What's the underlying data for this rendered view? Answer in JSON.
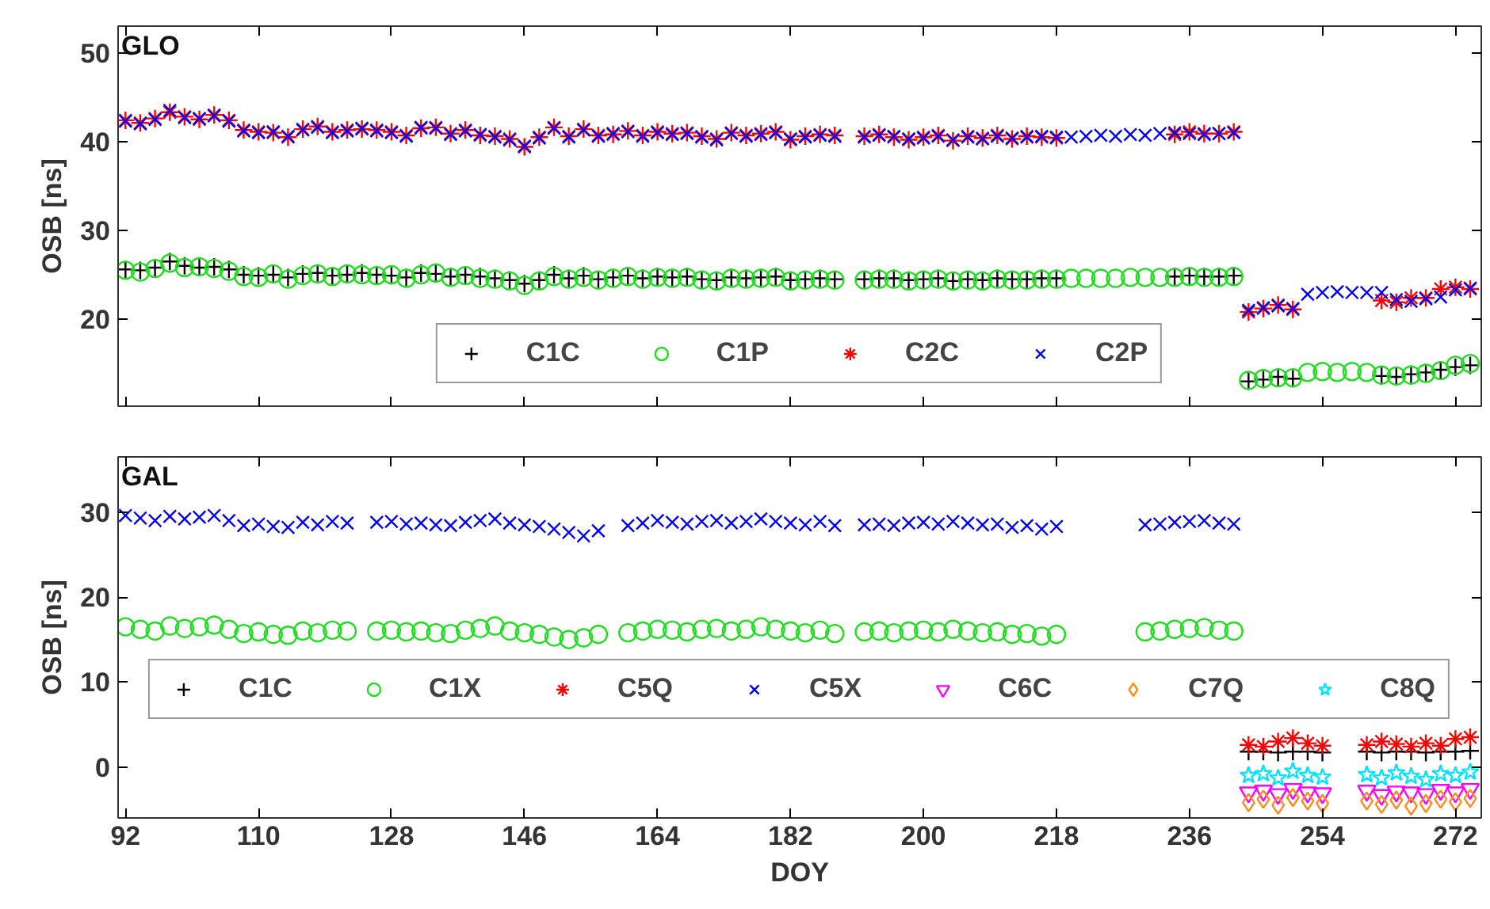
{
  "chart_data": [
    {
      "type": "scatter",
      "title": "GLO",
      "ylabel": "OSB [ns]",
      "tick_labels": "y",
      "legend": "bottom",
      "x": [
        92,
        94,
        96,
        98,
        100,
        102,
        104,
        106,
        108,
        110,
        112,
        114,
        116,
        118,
        120,
        122,
        124,
        126,
        128,
        130,
        132,
        134,
        136,
        138,
        140,
        142,
        144,
        146,
        148,
        150,
        152,
        154,
        156,
        158,
        160,
        162,
        164,
        166,
        168,
        170,
        172,
        174,
        176,
        178,
        180,
        182,
        184,
        186,
        188,
        190,
        192,
        194,
        196,
        198,
        200,
        202,
        204,
        206,
        208,
        210,
        212,
        214,
        216,
        218,
        220,
        222,
        224,
        226,
        228,
        230,
        232,
        234,
        236,
        238,
        240,
        242,
        244,
        246,
        248,
        250,
        252,
        254,
        256,
        258,
        260,
        262,
        264,
        266,
        268,
        270,
        272,
        274
      ],
      "xlim": [
        91,
        275.5
      ],
      "xticks": [
        92,
        110,
        128,
        146,
        164,
        182,
        200,
        218,
        236,
        254,
        272
      ],
      "ylim": [
        10.2,
        53
      ],
      "yticks": [
        20,
        30,
        40,
        50
      ],
      "series": [
        {
          "name": "C1C",
          "color": "#000000",
          "marker": "cross",
          "values": [
            25.6,
            25.5,
            25.8,
            26.5,
            26.0,
            25.8,
            25.9,
            25.6,
            25.0,
            24.9,
            25.0,
            24.7,
            25.1,
            25.2,
            24.9,
            25.0,
            25.2,
            25.0,
            24.9,
            24.7,
            25.2,
            25.1,
            24.8,
            25.0,
            24.8,
            24.6,
            24.4,
            24.0,
            24.4,
            25.0,
            24.6,
            24.9,
            24.5,
            24.7,
            24.9,
            24.6,
            24.8,
            24.7,
            24.8,
            24.5,
            24.4,
            24.7,
            24.6,
            24.7,
            24.8,
            24.4,
            24.5,
            24.6,
            24.5,
            null,
            24.5,
            24.6,
            24.6,
            24.4,
            24.5,
            24.6,
            24.3,
            24.5,
            24.4,
            24.6,
            24.5,
            24.5,
            24.6,
            24.6,
            null,
            null,
            null,
            null,
            null,
            null,
            null,
            24.8,
            24.9,
            24.8,
            24.8,
            24.9,
            13.0,
            13.2,
            13.5,
            13.3,
            null,
            null,
            null,
            null,
            null,
            13.6,
            13.5,
            13.8,
            14.0,
            14.3,
            14.6,
            14.8
          ]
        },
        {
          "name": "C1P",
          "color": "#22dd22",
          "marker": "circle",
          "values": [
            25.5,
            25.3,
            25.7,
            26.3,
            25.8,
            25.9,
            25.7,
            25.4,
            24.8,
            24.7,
            25.1,
            24.5,
            24.9,
            25.1,
            24.8,
            25.1,
            25.0,
            24.9,
            25.0,
            24.6,
            25.0,
            25.2,
            24.7,
            24.9,
            24.6,
            24.5,
            24.3,
            23.8,
            24.3,
            24.8,
            24.5,
            24.7,
            24.4,
            24.6,
            24.8,
            24.5,
            24.7,
            24.6,
            24.7,
            24.4,
            24.3,
            24.6,
            24.5,
            24.6,
            24.7,
            24.3,
            24.4,
            24.5,
            24.4,
            null,
            24.4,
            24.5,
            24.5,
            24.3,
            24.4,
            24.5,
            24.3,
            24.4,
            24.3,
            24.5,
            24.4,
            24.4,
            24.5,
            24.5,
            24.6,
            24.6,
            24.6,
            24.6,
            24.7,
            24.7,
            24.7,
            24.7,
            24.8,
            24.7,
            24.7,
            24.8,
            13.1,
            13.3,
            13.4,
            13.4,
            14.0,
            14.1,
            14.0,
            14.1,
            14.0,
            13.7,
            13.6,
            13.7,
            13.9,
            14.2,
            14.8,
            15.0
          ]
        },
        {
          "name": "C2C",
          "color": "#ff0000",
          "values": [
            42.4,
            42.1,
            42.6,
            43.3,
            42.8,
            42.5,
            43.0,
            42.4,
            41.3,
            41.1,
            41.0,
            40.5,
            41.4,
            41.7,
            41.1,
            41.3,
            41.4,
            41.3,
            41.1,
            40.7,
            41.5,
            41.6,
            40.9,
            41.3,
            40.7,
            40.6,
            40.3,
            39.4,
            40.5,
            41.6,
            40.6,
            41.4,
            40.7,
            40.8,
            41.2,
            40.7,
            41.1,
            40.9,
            41.0,
            40.6,
            40.3,
            41.0,
            40.7,
            40.9,
            41.1,
            40.2,
            40.6,
            40.8,
            40.7,
            null,
            40.6,
            40.8,
            40.5,
            40.2,
            40.5,
            40.7,
            40.1,
            40.6,
            40.4,
            40.7,
            40.3,
            40.6,
            40.5,
            40.4,
            null,
            null,
            null,
            null,
            null,
            null,
            null,
            40.8,
            41.1,
            40.9,
            40.9,
            41.1,
            20.8,
            21.2,
            21.6,
            21.1,
            null,
            null,
            null,
            null,
            null,
            22.1,
            21.9,
            22.4,
            22.4,
            23.4,
            23.6,
            23.4
          ]
        },
        {
          "name": "C2P",
          "color": "#0000ff",
          "values": [
            42.3,
            42.0,
            42.5,
            43.5,
            42.7,
            42.6,
            42.9,
            42.3,
            41.2,
            41.0,
            41.1,
            40.6,
            41.3,
            41.6,
            41.0,
            41.2,
            41.5,
            41.2,
            41.0,
            40.6,
            41.6,
            41.5,
            40.8,
            41.2,
            40.8,
            40.5,
            40.2,
            39.5,
            40.4,
            41.5,
            40.5,
            41.3,
            40.6,
            40.9,
            41.1,
            40.6,
            41.0,
            40.8,
            40.9,
            40.5,
            40.2,
            40.9,
            40.6,
            40.8,
            41.0,
            40.3,
            40.5,
            40.7,
            40.6,
            null,
            40.5,
            40.7,
            40.6,
            40.3,
            40.4,
            40.6,
            40.2,
            40.5,
            40.3,
            40.6,
            40.4,
            40.5,
            40.6,
            40.5,
            40.5,
            40.6,
            40.7,
            40.6,
            40.8,
            40.7,
            40.9,
            41.0,
            40.9,
            40.8,
            40.9,
            41.0,
            21.0,
            21.3,
            21.5,
            21.2,
            22.8,
            23.0,
            23.1,
            23.0,
            23.0,
            23.0,
            22.2,
            22.0,
            22.3,
            22.5,
            23.3,
            23.5
          ]
        }
      ]
    },
    {
      "type": "scatter",
      "title": "GAL",
      "xlabel": "DOY",
      "ylabel": "OSB [ns]",
      "legend": "center",
      "x": [
        92,
        94,
        96,
        98,
        100,
        102,
        104,
        106,
        108,
        110,
        112,
        114,
        116,
        118,
        120,
        122,
        124,
        126,
        128,
        130,
        132,
        134,
        136,
        138,
        140,
        142,
        144,
        146,
        148,
        150,
        152,
        154,
        156,
        158,
        160,
        162,
        164,
        166,
        168,
        170,
        172,
        174,
        176,
        178,
        180,
        182,
        184,
        186,
        188,
        190,
        192,
        194,
        196,
        198,
        200,
        202,
        204,
        206,
        208,
        210,
        212,
        214,
        216,
        218,
        220,
        222,
        224,
        226,
        228,
        230,
        232,
        234,
        236,
        238,
        240,
        242
      ],
      "xlim": [
        91,
        275.5
      ],
      "xticks": [
        92,
        110,
        128,
        146,
        164,
        182,
        200,
        218,
        236,
        254,
        272
      ],
      "ylim": [
        -6,
        36.5
      ],
      "yticks": [
        0,
        10,
        20,
        30
      ],
      "series": [
        {
          "name": "C1C",
          "color": "#000000",
          "marker": "cross",
          "x": [
            244,
            246,
            248,
            250,
            252,
            254,
            260,
            262,
            264,
            266,
            268,
            270,
            272,
            274
          ],
          "values": [
            1.8,
            1.8,
            1.7,
            1.8,
            1.8,
            1.7,
            1.8,
            1.7,
            1.8,
            1.8,
            1.7,
            1.8,
            1.8,
            1.9
          ]
        },
        {
          "name": "C1X",
          "color": "#22dd22",
          "marker": "circle",
          "values": [
            16.5,
            16.2,
            16.0,
            16.6,
            16.3,
            16.5,
            16.7,
            16.2,
            15.7,
            15.9,
            15.6,
            15.5,
            16.0,
            15.8,
            16.1,
            16.0,
            null,
            16.0,
            16.1,
            15.9,
            16.0,
            15.8,
            15.7,
            16.1,
            16.3,
            16.6,
            16.0,
            15.8,
            15.6,
            15.3,
            15.0,
            15.2,
            15.6,
            null,
            15.8,
            16.0,
            16.2,
            16.1,
            15.9,
            16.2,
            16.3,
            16.0,
            16.2,
            16.5,
            16.2,
            16.0,
            15.8,
            16.1,
            15.7,
            null,
            15.9,
            16.0,
            15.8,
            16.0,
            16.1,
            15.9,
            16.2,
            16.0,
            15.8,
            15.9,
            15.6,
            15.7,
            15.4,
            15.6,
            null,
            null,
            null,
            null,
            null,
            15.9,
            16.0,
            16.2,
            16.3,
            16.4,
            16.1,
            16.0
          ]
        },
        {
          "name": "C5Q",
          "color": "#ff0000",
          "x": [
            244,
            246,
            248,
            250,
            252,
            254,
            260,
            262,
            264,
            266,
            268,
            270,
            272,
            274
          ],
          "values": [
            2.6,
            2.4,
            3.0,
            3.4,
            2.8,
            2.5,
            2.6,
            3.0,
            2.7,
            2.4,
            2.8,
            2.5,
            3.3,
            3.5
          ]
        },
        {
          "name": "C5X",
          "color": "#0000ff",
          "values": [
            29.6,
            29.3,
            29.0,
            29.5,
            29.2,
            29.4,
            29.6,
            29.0,
            28.4,
            28.6,
            28.3,
            28.2,
            28.8,
            28.5,
            28.9,
            28.7,
            null,
            28.8,
            28.9,
            28.6,
            28.7,
            28.5,
            28.4,
            28.8,
            29.0,
            29.2,
            28.7,
            28.5,
            28.3,
            28.0,
            27.6,
            27.2,
            27.8,
            null,
            28.4,
            28.7,
            29.0,
            28.8,
            28.6,
            28.9,
            29.0,
            28.7,
            28.9,
            29.2,
            28.9,
            28.7,
            28.5,
            28.9,
            28.4,
            null,
            28.5,
            28.6,
            28.4,
            28.7,
            28.8,
            28.6,
            28.9,
            28.7,
            28.5,
            28.6,
            28.2,
            28.4,
            28.0,
            28.3,
            null,
            null,
            null,
            null,
            null,
            28.5,
            28.6,
            28.8,
            28.9,
            29.0,
            28.7,
            28.6
          ]
        },
        {
          "name": "C6C",
          "color": "#ff00ff",
          "x": [
            244,
            246,
            248,
            250,
            252,
            254,
            260,
            262,
            264,
            266,
            268,
            270,
            272,
            274
          ],
          "values": [
            -3.0,
            -2.8,
            -3.2,
            -2.6,
            -3.0,
            -3.1,
            -2.8,
            -3.3,
            -2.9,
            -3.0,
            -3.2,
            -2.7,
            -3.0,
            -2.6
          ]
        },
        {
          "name": "C7Q",
          "color": "#ff8c1a",
          "marker": "diamond",
          "x": [
            244,
            246,
            248,
            250,
            252,
            254,
            260,
            262,
            264,
            266,
            268,
            270,
            272,
            274
          ],
          "values": [
            -4.2,
            -3.8,
            -4.5,
            -3.6,
            -4.0,
            -4.3,
            -4.0,
            -4.4,
            -3.9,
            -4.6,
            -4.3,
            -3.8,
            -4.1,
            -3.7
          ]
        },
        {
          "name": "C8Q",
          "color": "#00e5ff",
          "marker": "star",
          "x": [
            244,
            246,
            248,
            250,
            252,
            254,
            260,
            262,
            264,
            266,
            268,
            270,
            272,
            274
          ],
          "values": [
            -1.0,
            -0.8,
            -1.3,
            -0.5,
            -1.0,
            -1.2,
            -0.9,
            -1.3,
            -0.7,
            -1.1,
            -1.5,
            -0.8,
            -1.0,
            -0.6
          ]
        }
      ]
    }
  ]
}
